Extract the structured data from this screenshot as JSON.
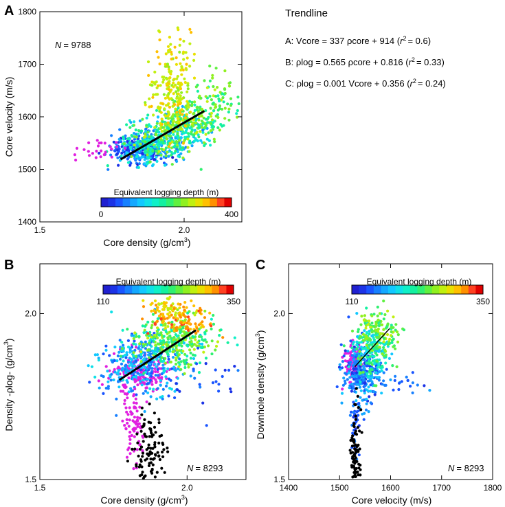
{
  "trendline": {
    "heading": "Trendline",
    "eqA_pre": "A: Vcore = 337 ρcore + 914  (",
    "eqA_r2": "= 0.6)",
    "eqB_pre": "B: ρlog = 0.565 ρcore + 0.816 (",
    "eqB_r2": "= 0.33)",
    "eqC_pre": "C: ρlog = 0.001 Vcore + 0.356 (",
    "eqC_r2": "= 0.24)",
    "r_letter": "r",
    "r_exp": "2"
  },
  "colormap": [
    "#2020d0",
    "#1c33e6",
    "#1a55ff",
    "#1780ff",
    "#14a8ff",
    "#12c8ff",
    "#10e0e8",
    "#10f0c8",
    "#14f0a0",
    "#30f070",
    "#60f040",
    "#90f020",
    "#c0f010",
    "#e8e000",
    "#ffc000",
    "#ff9000",
    "#ff4020",
    "#e00000"
  ],
  "chart_data": [
    {
      "type": "scatter",
      "panel_label": "A",
      "n_label": "N",
      "n_value": "= 9788",
      "xlabel_pre": "Core density  (g/cm",
      "xlabel_exp": "3",
      "xlabel_post": ")",
      "ylabel": "Core velocity (m/s)",
      "xlim": [
        1.5,
        2.2
      ],
      "ylim": [
        1400,
        1800
      ],
      "xticks": [
        1.5,
        2.0
      ],
      "xtick_labels": [
        "1.5",
        "2.0"
      ],
      "yticks": [
        1400,
        1500,
        1600,
        1700,
        1800
      ],
      "ytick_labels": [
        "1400",
        "1500",
        "1600",
        "1700",
        "1800"
      ],
      "colorbar": {
        "label": "Equivalent logging depth (m)",
        "min_label": "0",
        "max_label": "400"
      },
      "trend": {
        "x": [
          1.78,
          2.07
        ],
        "y": [
          1519,
          1611
        ]
      }
    },
    {
      "type": "scatter",
      "panel_label": "B",
      "n_label": "N",
      "n_value": "= 8293",
      "xlabel_pre": "Core density (g/cm",
      "xlabel_exp": "3",
      "xlabel_post": ")",
      "ylabel_pre": "Density -ρlog- (g/cm",
      "ylabel_exp": "3",
      "ylabel_post": ")",
      "xlim": [
        1.5,
        2.2
      ],
      "ylim": [
        1.5,
        2.15
      ],
      "xticks": [
        1.5,
        2.0
      ],
      "xtick_labels": [
        "1.5",
        "2.0"
      ],
      "yticks": [
        1.5,
        2.0
      ],
      "ytick_labels": [
        "1.5",
        "2.0"
      ],
      "colorbar": {
        "label": "Equivalent logging depth (m)",
        "min_label": "110",
        "max_label": "350"
      },
      "trend": {
        "x": [
          1.77,
          2.03
        ],
        "y": [
          1.8,
          1.95
        ]
      }
    },
    {
      "type": "scatter",
      "panel_label": "C",
      "n_label": "N",
      "n_value": "= 8293",
      "xlabel": "Core velocity (m/s)",
      "ylabel_pre": "Downhole density (g/cm",
      "ylabel_exp": "3",
      "ylabel_post": ")",
      "xlim": [
        1400,
        1800
      ],
      "ylim": [
        1.5,
        2.15
      ],
      "xticks": [
        1400,
        1500,
        1600,
        1700,
        1800
      ],
      "xtick_labels": [
        "1400",
        "1500",
        "1600",
        "1700",
        "1800"
      ],
      "yticks": [
        1.5,
        2.0
      ],
      "ytick_labels": [
        "1.5",
        "2.0"
      ],
      "colorbar": {
        "label": "Equivalent logging depth (m)",
        "min_label": "110",
        "max_label": "350"
      },
      "trend": {
        "x": [
          1530,
          1598
        ],
        "y": [
          1.84,
          1.955
        ]
      }
    }
  ]
}
